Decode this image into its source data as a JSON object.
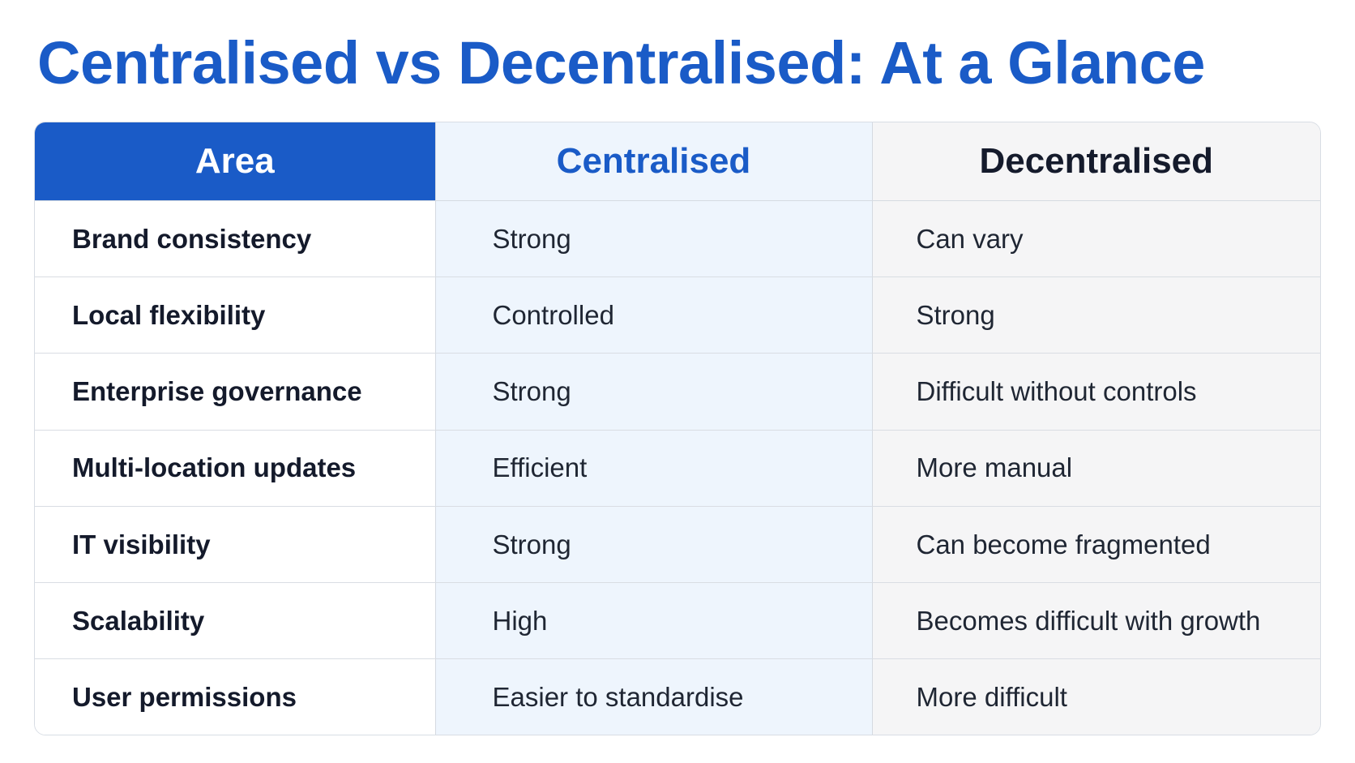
{
  "title": "Centralised vs Decentralised: At a Glance",
  "colors": {
    "accent_blue": "#1a5bc7",
    "centralised_column_bg": "#eef5fd",
    "decentralised_column_bg": "#f5f5f6",
    "text_dark": "#141a2b"
  },
  "table": {
    "headers": {
      "area": "Area",
      "centralised": "Centralised",
      "decentralised": "Decentralised"
    },
    "rows": [
      {
        "area": "Brand consistency",
        "centralised": "Strong",
        "decentralised": "Can vary"
      },
      {
        "area": "Local flexibility",
        "centralised": "Controlled",
        "decentralised": "Strong"
      },
      {
        "area": "Enterprise governance",
        "centralised": "Strong",
        "decentralised": "Difficult without controls"
      },
      {
        "area": "Multi-location updates",
        "centralised": "Efficient",
        "decentralised": "More manual"
      },
      {
        "area": "IT visibility",
        "centralised": "Strong",
        "decentralised": "Can become fragmented"
      },
      {
        "area": "Scalability",
        "centralised": "High",
        "decentralised": "Becomes difficult with growth"
      },
      {
        "area": "User permissions",
        "centralised": "Easier to standardise",
        "decentralised": "More difficult"
      }
    ]
  }
}
